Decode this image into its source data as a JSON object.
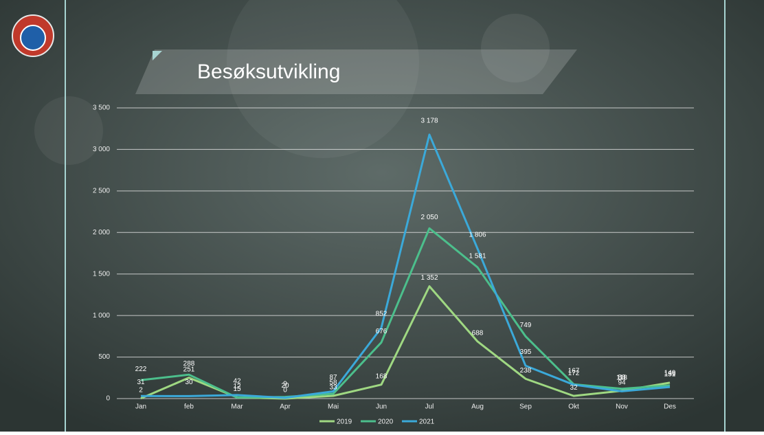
{
  "chart_data": {
    "type": "line",
    "title": "Besøksutvikling",
    "categories": [
      "Jan",
      "feb",
      "Mar",
      "Apr",
      "Mai",
      "Jun",
      "Jul",
      "Aug",
      "Sep",
      "Okt",
      "Nov",
      "Des"
    ],
    "series": [
      {
        "name": "2019",
        "color": "#9fd882",
        "values": [
          2,
          251,
          15,
          0,
          33,
          168,
          1352,
          688,
          238,
          32,
          94,
          191
        ],
        "value_labels": [
          "2",
          "251",
          "15",
          "0",
          "33",
          "168",
          "1 352",
          "688",
          "238",
          "32",
          "94",
          "191"
        ]
      },
      {
        "name": "2020",
        "color": "#4cbf8c",
        "values": [
          222,
          288,
          12,
          20,
          58,
          676,
          2050,
          1581,
          749,
          172,
          118,
          159
        ],
        "value_labels": [
          "222",
          "288",
          "12",
          "20",
          "58",
          "676",
          "2 050",
          "1 581",
          "749",
          "172",
          "118",
          "159"
        ]
      },
      {
        "name": "2021",
        "color": "#3ba9d9",
        "values": [
          31,
          30,
          42,
          9,
          87,
          852,
          3178,
          1806,
          395,
          167,
          88,
          140
        ],
        "value_labels": [
          "31",
          "30",
          "42",
          "9",
          "87",
          "852",
          "3 178",
          "1 806",
          "395",
          "167",
          "88",
          "140"
        ]
      }
    ],
    "ylim": [
      0,
      3500
    ],
    "yticks": [
      0,
      500,
      {
        "value": 1000,
        "label": "1 000"
      },
      {
        "value": 1500,
        "label": "1 500"
      },
      {
        "value": 2000,
        "label": "2 000"
      },
      {
        "value": 2500,
        "label": "2 500"
      },
      {
        "value": 3000,
        "label": "3 000"
      },
      {
        "value": 3500,
        "label": "3 500"
      }
    ],
    "grid": true,
    "legend": "bottom"
  }
}
